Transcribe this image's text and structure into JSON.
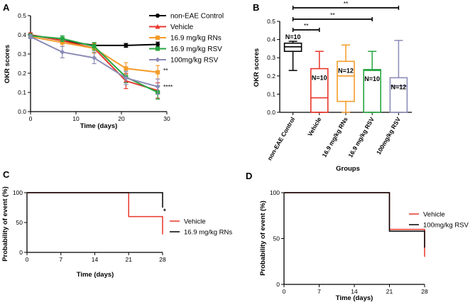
{
  "panels": {
    "a": "A",
    "b": "B",
    "c": "C",
    "d": "D"
  },
  "chart_data": [
    {
      "type": "line",
      "panel": "A",
      "xlabel": "Time (days)",
      "ylabel": "OKR scores",
      "xlim": [
        0,
        30
      ],
      "ylim": [
        0.0,
        0.5
      ],
      "xticks": [
        "0",
        "10",
        "20",
        "30"
      ],
      "yticks": [
        "0.0",
        "0.1",
        "0.2",
        "0.3",
        "0.4",
        "0.5"
      ],
      "x": [
        0,
        7,
        14,
        21,
        28
      ],
      "series": [
        {
          "name": "non-EAE Control",
          "color": "#000000",
          "marker": "circle",
          "values": [
            0.4,
            0.37,
            0.345,
            0.345,
            0.35
          ],
          "err": [
            0.01,
            0.01,
            0.012,
            0.01,
            0.012
          ]
        },
        {
          "name": "Vehicle",
          "color": "#e8372c",
          "marker": "triangle",
          "values": [
            0.4,
            0.37,
            0.33,
            0.16,
            0.11
          ],
          "err": [
            0.01,
            0.015,
            0.025,
            0.04,
            0.04
          ]
        },
        {
          "name": "16.9 mg/kg RNs",
          "color": "#f39c2a",
          "marker": "square",
          "values": [
            0.39,
            0.36,
            0.33,
            0.225,
            0.205
          ],
          "err": [
            0.01,
            0.02,
            0.025,
            0.03,
            0.035
          ]
        },
        {
          "name": "16.9 mg/kg RSV",
          "color": "#27a640",
          "marker": "square",
          "values": [
            0.395,
            0.38,
            0.34,
            0.18,
            0.1
          ],
          "err": [
            0.01,
            0.015,
            0.02,
            0.03,
            0.035
          ]
        },
        {
          "name": "100mg/kg RSV",
          "color": "#8c8cb8",
          "marker": "diamond",
          "values": [
            0.39,
            0.31,
            0.28,
            0.175,
            0.13
          ],
          "err": [
            0.01,
            0.03,
            0.03,
            0.035,
            0.04
          ]
        }
      ],
      "annotations": [
        "**",
        "****"
      ]
    },
    {
      "type": "box",
      "panel": "B",
      "xlabel": "Groups",
      "ylabel": "OKR scores",
      "ylim": [
        0.0,
        0.5
      ],
      "yticks": [
        "0.0",
        "0.1",
        "0.2",
        "0.3",
        "0.4",
        "0.5"
      ],
      "categories": [
        "non-EAE Control",
        "Vehicle",
        "16.9 mg/kg RNs",
        "16.9 mg/kg RSV",
        "100mg/kg RSV"
      ],
      "boxes": [
        {
          "color": "#000000",
          "min": 0.23,
          "q1": 0.335,
          "median": 0.36,
          "q3": 0.38,
          "max": 0.39,
          "n": "N=10"
        },
        {
          "color": "#e8372c",
          "min": 0.0,
          "q1": 0.0,
          "median": 0.08,
          "q3": 0.24,
          "max": 0.335,
          "n": "N=10"
        },
        {
          "color": "#f39c2a",
          "min": 0.0,
          "q1": 0.06,
          "median": 0.2,
          "q3": 0.28,
          "max": 0.37,
          "n": "N=12"
        },
        {
          "color": "#27a640",
          "min": 0.0,
          "q1": 0.0,
          "median": 0.23,
          "q3": 0.235,
          "max": 0.335,
          "n": "N=10"
        },
        {
          "color": "#8c8cb8",
          "min": 0.0,
          "q1": 0.0,
          "median": 0.145,
          "q3": 0.19,
          "max": 0.395,
          "n": "N=12"
        }
      ],
      "significance": [
        {
          "from": 0,
          "to": 1,
          "label": "**"
        },
        {
          "from": 0,
          "to": 3,
          "label": "**"
        },
        {
          "from": 0,
          "to": 4,
          "label": "**"
        }
      ]
    },
    {
      "type": "step",
      "panel": "C",
      "xlabel": "Time (days)",
      "ylabel": "Probability of event (%)",
      "xlim": [
        0,
        28
      ],
      "ylim": [
        0,
        100
      ],
      "xticks": [
        "0",
        "7",
        "14",
        "21",
        "28"
      ],
      "yticks": [
        "0",
        "50",
        "100"
      ],
      "series": [
        {
          "name": "Vehicle",
          "color": "#e8372c",
          "steps": [
            [
              0,
              100
            ],
            [
              21,
              100
            ],
            [
              21,
              60
            ],
            [
              28,
              60
            ],
            [
              28,
              30
            ]
          ]
        },
        {
          "name": "16.9 mg/kg RNs",
          "color": "#000000",
          "steps": [
            [
              0,
              100
            ],
            [
              28,
              100
            ],
            [
              28,
              75
            ]
          ]
        }
      ],
      "annotations": [
        "*"
      ]
    },
    {
      "type": "step",
      "panel": "D",
      "xlabel": "Time (days)",
      "ylabel": "Probability of event (%)",
      "xlim": [
        0,
        28
      ],
      "ylim": [
        0,
        100
      ],
      "xticks": [
        "0",
        "7",
        "14",
        "21",
        "28"
      ],
      "yticks": [
        "0",
        "50",
        "100"
      ],
      "series": [
        {
          "name": "Vehicle",
          "color": "#e8372c",
          "steps": [
            [
              0,
              100
            ],
            [
              21,
              100
            ],
            [
              21,
              60
            ],
            [
              28,
              60
            ],
            [
              28,
              30
            ]
          ]
        },
        {
          "name": "100mg/kg RSV",
          "color": "#000000",
          "steps": [
            [
              0,
              100
            ],
            [
              21,
              100
            ],
            [
              21,
              58
            ],
            [
              28,
              58
            ],
            [
              28,
              40
            ]
          ]
        }
      ]
    }
  ]
}
